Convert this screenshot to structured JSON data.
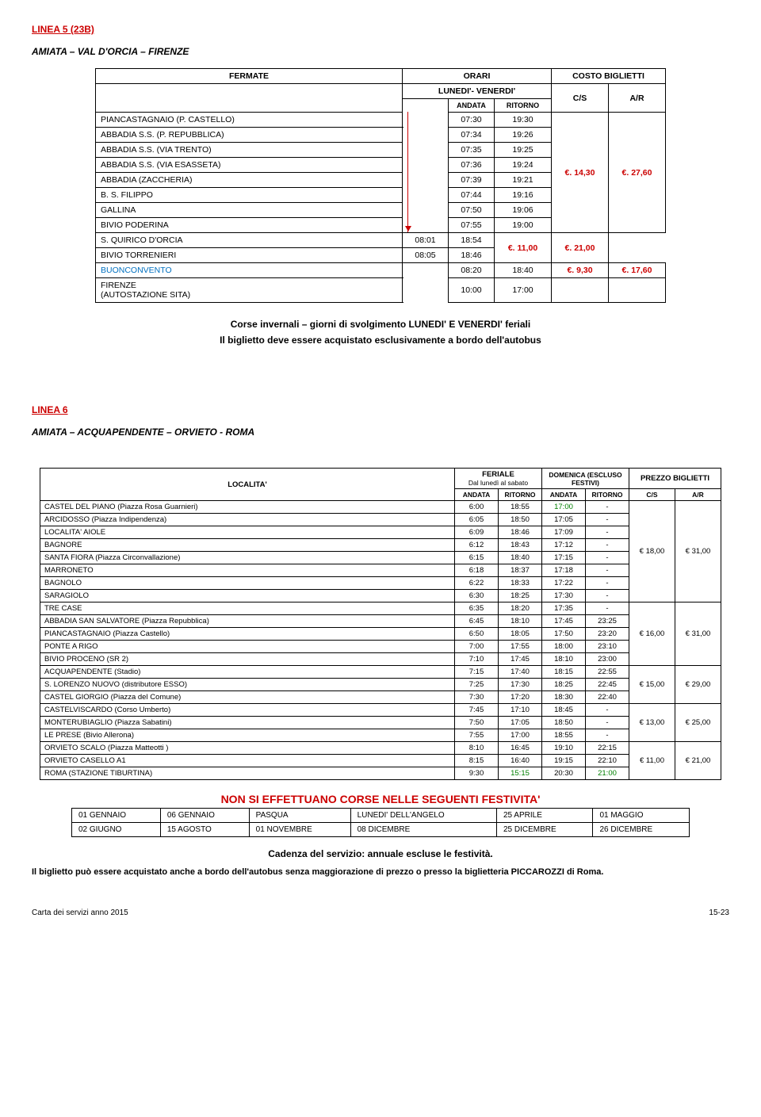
{
  "linea5": {
    "heading": "LINEA 5    (23B)",
    "route": "AMIATA – VAL D'ORCIA – FIRENZE",
    "col_fermate": "FERMATE",
    "col_orari": "ORARI",
    "col_costo": "COSTO BIGLIETTI",
    "col_lunedi": "LUNEDI'- VENERDI'",
    "col_andata": "ANDATA",
    "col_ritorno": "RITORNO",
    "col_cs": "C/S",
    "col_ar": "A/R",
    "rows_g1": [
      {
        "s": "PIANCASTAGNAIO (P. CASTELLO)",
        "a": "07:30",
        "r": "19:30"
      },
      {
        "s": "ABBADIA S.S. (P. REPUBBLICA)",
        "a": "07:34",
        "r": "19:26"
      },
      {
        "s": "ABBADIA S.S. (VIA TRENTO)",
        "a": "07:35",
        "r": "19:25"
      },
      {
        "s": "ABBADIA S.S. (VIA ESASSETA)",
        "a": "07:36",
        "r": "19:24"
      },
      {
        "s": "ABBADIA (ZACCHERIA)",
        "a": "07:39",
        "r": "19:21"
      },
      {
        "s": "B. S. FILIPPO",
        "a": "07:44",
        "r": "19:16"
      },
      {
        "s": "GALLINA",
        "a": "07:50",
        "r": "19:06"
      },
      {
        "s": "BIVIO PODERINA",
        "a": "07:55",
        "r": "19:00"
      }
    ],
    "price_g1_cs": "€. 14,30",
    "price_g1_ar": "€. 27,60",
    "rows_g2": [
      {
        "s": "S. QUIRICO D'ORCIA",
        "a": "08:01",
        "r": "18:54"
      },
      {
        "s": "BIVIO TORRENIERI",
        "a": "08:05",
        "r": "18:46"
      }
    ],
    "price_g2_cs": "€. 11,00",
    "price_g2_ar": "€. 21,00",
    "row_bc": {
      "s": "BUONCONVENTO",
      "a": "08:20",
      "r": "18:40"
    },
    "price_bc_cs": "€. 9,30",
    "price_bc_ar": "€. 17,60",
    "row_fi": {
      "s": "FIRENZE\n(AUTOSTAZIONE SITA)",
      "a": "10:00",
      "r": "17:00"
    },
    "note1": "Corse  invernali – giorni di svolgimento LUNEDI' E VENERDI' feriali",
    "note2": "Il biglietto deve essere acquistato esclusivamente a bordo dell'autobus"
  },
  "linea6": {
    "heading": "LINEA 6",
    "route": "AMIATA – ACQUAPENDENTE – ORVIETO - ROMA",
    "col_localita": "LOCALITA'",
    "col_feriale": "FERIALE",
    "col_feriale_sub": "Dal lunedì al sabato",
    "col_domenica": "DOMENICA (ESCLUSO FESTIVI)",
    "col_prezzo": "PREZZO BIGLIETTI",
    "col_andata": "ANDATA",
    "col_ritorno": "RITORNO",
    "col_cs": "C/S",
    "col_ar": "A/R",
    "rows": [
      {
        "s": "CASTEL DEL PIANO (Piazza Rosa Guarnieri)",
        "a": "6:00",
        "r": "18:55",
        "da": "17:00",
        "dr": "-",
        "cs": "",
        "ar": "",
        "green_da": true
      },
      {
        "s": "ARCIDOSSO (Piazza Indipendenza)",
        "a": "6:05",
        "r": "18:50",
        "da": "17:05",
        "dr": "-",
        "cs": "",
        "ar": ""
      },
      {
        "s": "LOCALITA' AIOLE",
        "a": "6:09",
        "r": "18:46",
        "da": "17:09",
        "dr": "-",
        "cs": "€ 18,00",
        "ar": "€ 31,00"
      },
      {
        "s": "BAGNORE",
        "a": "6:12",
        "r": "18:43",
        "da": "17:12",
        "dr": "-",
        "cs": "",
        "ar": ""
      },
      {
        "s": "SANTA FIORA (Piazza Circonvallazione)",
        "a": "6:15",
        "r": "18:40",
        "da": "17:15",
        "dr": "-",
        "cs": "",
        "ar": ""
      },
      {
        "s": "MARRONETO",
        "a": "6:18",
        "r": "18:37",
        "da": "17:18",
        "dr": "-",
        "cs": "",
        "ar": ""
      },
      {
        "s": "BAGNOLO",
        "a": "6:22",
        "r": "18:33",
        "da": "17:22",
        "dr": "-",
        "cs": "",
        "ar": ""
      },
      {
        "s": "SARAGIOLO",
        "a": "6:30",
        "r": "18:25",
        "da": "17:30",
        "dr": "-",
        "cs": "",
        "ar": ""
      },
      {
        "s": "TRE CASE",
        "a": "6:35",
        "r": "18:20",
        "da": "17:35",
        "dr": "-",
        "cs": "€ 16,00",
        "ar": "€ 31,00"
      },
      {
        "s": "ABBADIA SAN SALVATORE (Piazza Repubblica)",
        "a": "6:45",
        "r": "18:10",
        "da": "17:45",
        "dr": "23:25",
        "cs": "",
        "ar": ""
      },
      {
        "s": "PIANCASTAGNAIO (Piazza Castello)",
        "a": "6:50",
        "r": "18:05",
        "da": "17:50",
        "dr": "23:20",
        "cs": "",
        "ar": ""
      },
      {
        "s": "PONTE A RIGO",
        "a": "7:00",
        "r": "17:55",
        "da": "18:00",
        "dr": "23:10",
        "cs": "",
        "ar": ""
      },
      {
        "s": "BIVIO PROCENO (SR 2)",
        "a": "7:10",
        "r": "17:45",
        "da": "18:10",
        "dr": "23:00",
        "cs": "",
        "ar": ""
      },
      {
        "s": "ACQUAPENDENTE (Stadio)",
        "a": "7:15",
        "r": "17:40",
        "da": "18:15",
        "dr": "22:55",
        "cs": "€ 15,00",
        "ar": "€ 29,00"
      },
      {
        "s": "S. LORENZO NUOVO (distributore ESSO)",
        "a": "7:25",
        "r": "17:30",
        "da": "18:25",
        "dr": "22:45",
        "cs": "",
        "ar": ""
      },
      {
        "s": "CASTEL GIORGIO (Piazza del Comune)",
        "a": "7:30",
        "r": "17:20",
        "da": "18:30",
        "dr": "22:40",
        "cs": "",
        "ar": ""
      },
      {
        "s": "CASTELVISCARDO (Corso Umberto)",
        "a": "7:45",
        "r": "17:10",
        "da": "18:45",
        "dr": "-",
        "cs": "€ 13,00",
        "ar": "€ 25,00"
      },
      {
        "s": "MONTERUBIAGLIO (Piazza Sabatini)",
        "a": "7:50",
        "r": "17:05",
        "da": "18:50",
        "dr": "-",
        "cs": "",
        "ar": ""
      },
      {
        "s": "LE PRESE (Bivio Allerona)",
        "a": "7:55",
        "r": "17:00",
        "da": "18:55",
        "dr": "-",
        "cs": "",
        "ar": ""
      },
      {
        "s": "ORVIETO SCALO (Piazza Matteotti )",
        "a": "8:10",
        "r": "16:45",
        "da": "19:10",
        "dr": "22:15",
        "cs": "€ 11,00",
        "ar": "€ 21,00"
      },
      {
        "s": "ORVIETO CASELLO A1",
        "a": "8:15",
        "r": "16:40",
        "da": "19:15",
        "dr": "22:10",
        "cs": "",
        "ar": ""
      },
      {
        "s": "ROMA (STAZIONE TIBURTINA)",
        "a": "9:30",
        "r": "15:15",
        "da": "20:30",
        "dr": "21:00",
        "cs": "",
        "ar": "",
        "green_r": true,
        "green_dr": true
      }
    ],
    "hol_title": "NON SI EFFETTUANO CORSE NELLE SEGUENTI FESTIVITA'",
    "hol": [
      [
        "01 GENNAIO",
        "06 GENNAIO",
        "PASQUA",
        "LUNEDI' DELL'ANGELO",
        "25 APRILE",
        "01 MAGGIO"
      ],
      [
        "02 GIUGNO",
        "15 AGOSTO",
        "01 NOVEMBRE",
        "08 DICEMBRE",
        "25 DICEMBRE",
        "26 DICEMBRE"
      ]
    ],
    "cadenza": "Cadenza del servizio: annuale escluse le festività.",
    "footer": "Il biglietto può essere acquistato anche a bordo dell'autobus senza maggiorazione di prezzo o presso la biglietteria PICCAROZZI di Roma."
  },
  "page": {
    "left": "Carta dei servizi anno 2015",
    "right": "15-23"
  }
}
